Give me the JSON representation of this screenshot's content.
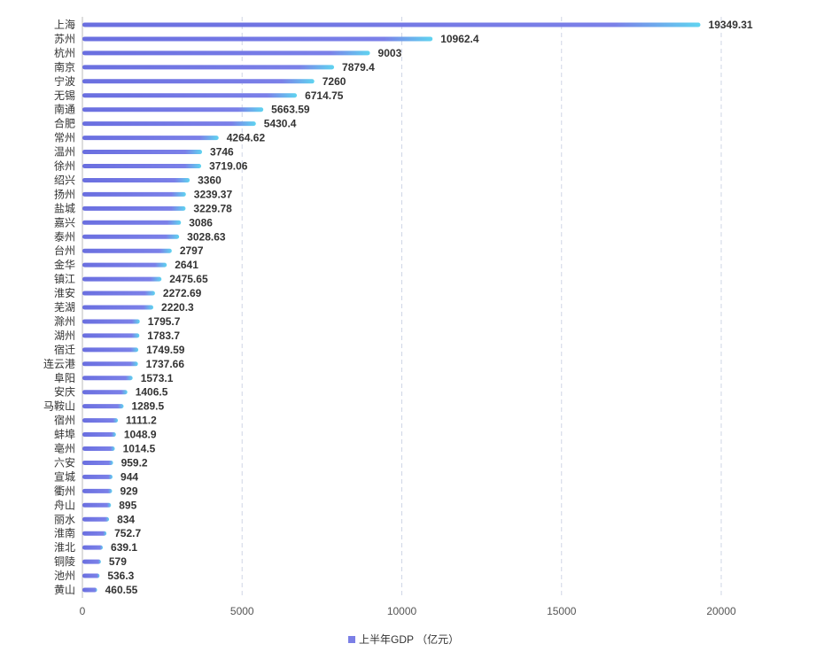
{
  "chart_data": {
    "type": "bar",
    "orientation": "horizontal",
    "categories": [
      "上海",
      "苏州",
      "杭州",
      "南京",
      "宁波",
      "无锡",
      "南通",
      "合肥",
      "常州",
      "温州",
      "徐州",
      "绍兴",
      "扬州",
      "盐城",
      "嘉兴",
      "泰州",
      "台州",
      "金华",
      "镇江",
      "淮安",
      "芜湖",
      "滁州",
      "湖州",
      "宿迁",
      "连云港",
      "阜阳",
      "安庆",
      "马鞍山",
      "宿州",
      "蚌埠",
      "亳州",
      "六安",
      "宣城",
      "衢州",
      "舟山",
      "丽水",
      "淮南",
      "淮北",
      "铜陵",
      "池州",
      "黄山"
    ],
    "series": [
      {
        "name": "上半年GDP （亿元）",
        "values": [
          19349.31,
          10962.4,
          9003,
          7879.4,
          7260,
          6714.75,
          5663.59,
          5430.4,
          4264.62,
          3746,
          3719.06,
          3360,
          3239.37,
          3229.78,
          3086,
          3028.63,
          2797,
          2641,
          2475.65,
          2272.69,
          2220.3,
          1795.7,
          1783.7,
          1749.59,
          1737.66,
          1573.1,
          1406.5,
          1289.5,
          1111.2,
          1048.9,
          1014.5,
          959.2,
          944,
          929,
          895,
          834,
          752.7,
          639.1,
          579,
          536.3,
          460.55
        ],
        "value_labels": [
          "19349.31",
          "10962.4",
          "9003",
          "7879.4",
          "7260",
          "6714.75",
          "5663.59",
          "5430.4",
          "4264.62",
          "3746",
          "3719.06",
          "3360",
          "3239.37",
          "3229.78",
          "3086",
          "3028.63",
          "2797",
          "2641",
          "2475.65",
          "2272.69",
          "2220.3",
          "1795.7",
          "1783.7",
          "1749.59",
          "1737.66",
          "1573.1",
          "1406.5",
          "1289.5",
          "1111.2",
          "1048.9",
          "1014.5",
          "959.2",
          "944",
          "929",
          "895",
          "834",
          "752.7",
          "639.1",
          "579",
          "536.3",
          "460.55"
        ]
      }
    ],
    "xlim": [
      0,
      20000
    ],
    "xticks": [
      "0",
      "5000",
      "10000",
      "15000",
      "20000"
    ],
    "grid": "vertical dashed",
    "legend": "bottom-center",
    "colors": {
      "bar_start": "#6a6fe0",
      "bar_end": "#5fd4f0",
      "grid": "#cfd6e6",
      "axis": "#bbbbbb",
      "legend_swatch": "#7b7fe6"
    }
  }
}
